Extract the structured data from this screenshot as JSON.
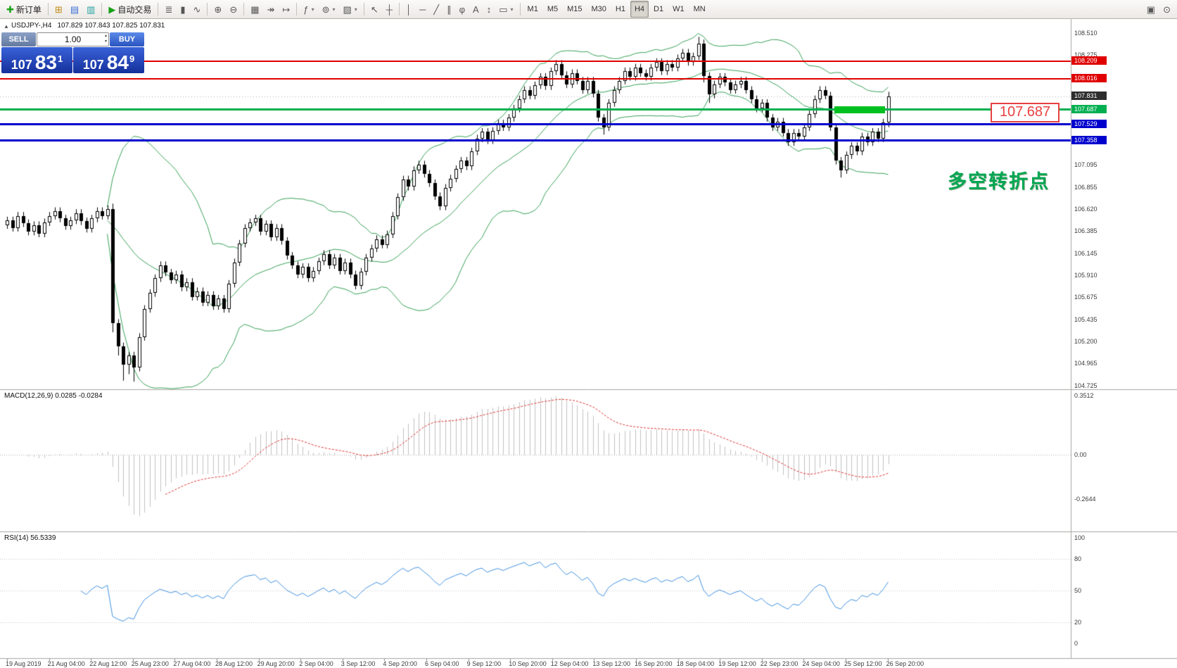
{
  "toolbar": {
    "groups": [
      {
        "items": [
          {
            "name": "new-order",
            "glyph": "✚",
            "glyph_color": "#18a018",
            "label": "新订单"
          }
        ]
      },
      {
        "items": [
          {
            "name": "market-watch",
            "glyph": "⊞",
            "glyph_color": "#c08a14"
          },
          {
            "name": "navigator",
            "glyph": "▤",
            "glyph_color": "#3a6fd8"
          },
          {
            "name": "terminal",
            "glyph": "▥",
            "glyph_color": "#1f9f9f"
          }
        ]
      },
      {
        "items": [
          {
            "name": "autotrading",
            "glyph": "▶",
            "glyph_color": "#18a018",
            "label": "自动交易"
          }
        ]
      },
      {
        "items": [
          {
            "name": "bar-chart",
            "glyph": "≣"
          },
          {
            "name": "candlestick-chart",
            "glyph": "▮"
          },
          {
            "name": "line-chart",
            "glyph": "∿"
          }
        ]
      },
      {
        "items": [
          {
            "name": "zoom-in",
            "glyph": "⊕"
          },
          {
            "name": "zoom-out",
            "glyph": "⊖"
          }
        ]
      },
      {
        "items": [
          {
            "name": "tile-windows",
            "glyph": "▦"
          },
          {
            "name": "auto-scroll",
            "glyph": "↠"
          },
          {
            "name": "chart-shift",
            "glyph": "↦"
          }
        ]
      },
      {
        "items": [
          {
            "name": "indicators",
            "glyph": "ƒ",
            "dropdown": true
          },
          {
            "name": "periods",
            "glyph": "⊚",
            "dropdown": true
          },
          {
            "name": "templates",
            "glyph": "▨",
            "dropdown": true
          }
        ]
      },
      {
        "items": [
          {
            "name": "cursor",
            "glyph": "↖"
          },
          {
            "name": "crosshair",
            "glyph": "┼"
          }
        ]
      },
      {
        "items": [
          {
            "name": "vertical-line",
            "glyph": "│"
          },
          {
            "name": "horizontal-line",
            "glyph": "─"
          },
          {
            "name": "trendline",
            "glyph": "╱"
          },
          {
            "name": "equidistant-channel",
            "glyph": "∥"
          },
          {
            "name": "fibonacci",
            "glyph": "φ"
          },
          {
            "name": "text",
            "glyph": "A"
          },
          {
            "name": "arrows",
            "glyph": "↕"
          },
          {
            "name": "shapes",
            "glyph": "▭",
            "dropdown": true
          }
        ]
      }
    ],
    "timeframes": [
      "M1",
      "M5",
      "M15",
      "M30",
      "H1",
      "H4",
      "D1",
      "W1",
      "MN"
    ],
    "active_timeframe": "H4",
    "right_icons": [
      {
        "name": "layout",
        "glyph": "▣"
      },
      {
        "name": "search",
        "glyph": "⊙"
      }
    ]
  },
  "header": {
    "toggle_icon": "▲",
    "symbol": "USDJPY-,H4",
    "ohlc": "107.829 107.843 107.825 107.831"
  },
  "trade_panel": {
    "sell_label": "SELL",
    "buy_label": "BUY",
    "volume": "1.00",
    "bid_main": "107",
    "bid_big": "83",
    "bid_sup": "1",
    "ask_main": "107",
    "ask_big": "84",
    "ask_sup": "9"
  },
  "annotations": {
    "box_label": "107.687",
    "pivot_text": "多空转折点"
  },
  "panels": {
    "macd_label": "MACD(12,26,9) 0.0285 -0.0284",
    "rsi_label": "RSI(14) 56.5339"
  },
  "chart_data": {
    "type": "candlestick",
    "symbol": "USDJPY",
    "timeframe": "H4",
    "current_price": 107.831,
    "price_axis_ticks": [
      "108.510",
      "108.275",
      "107.095",
      "106.855",
      "106.620",
      "106.385",
      "106.145",
      "105.910",
      "105.675",
      "105.435",
      "105.200",
      "104.965",
      "104.725"
    ],
    "time_axis_labels": [
      "19 Aug 2019",
      "21 Aug 04:00",
      "22 Aug 12:00",
      "25 Aug 23:00",
      "27 Aug 04:00",
      "28 Aug 12:00",
      "29 Aug 20:00",
      "2 Sep 04:00",
      "3 Sep 12:00",
      "4 Sep 20:00",
      "6 Sep 04:00",
      "9 Sep 12:00",
      "10 Sep 20:00",
      "12 Sep 04:00",
      "13 Sep 12:00",
      "16 Sep 20:00",
      "18 Sep 04:00",
      "19 Sep 12:00",
      "22 Sep 23:00",
      "24 Sep 04:00",
      "25 Sep 12:00",
      "26 Sep 20:00"
    ],
    "levels": [
      {
        "name": "resistance-upper",
        "price": 108.209,
        "color": "#e00000",
        "thickness": 2
      },
      {
        "name": "resistance-lower",
        "price": 108.016,
        "color": "#e00000",
        "thickness": 2
      },
      {
        "name": "pivot",
        "price": 107.687,
        "color": "#00b050",
        "thickness": 3
      },
      {
        "name": "support-upper",
        "price": 107.529,
        "color": "#0000cd",
        "thickness": 3
      },
      {
        "name": "support-lower",
        "price": 107.358,
        "color": "#0000cd",
        "thickness": 3
      }
    ],
    "bollinger": {
      "period": 20,
      "deviation": 2,
      "color": "#36a055"
    },
    "macd": {
      "fast": 12,
      "slow": 26,
      "signal": 9,
      "value": 0.0285,
      "signal_value": -0.0284,
      "scale_ticks": [
        "0.3512",
        "0.00",
        "-0.2644"
      ],
      "histogram_color": "#c0c0c0",
      "signal_color": "#e03030"
    },
    "rsi": {
      "period": 14,
      "value": 56.5339,
      "scale_ticks": [
        "100",
        "80",
        "50",
        "20",
        "0"
      ],
      "line_color": "#4090e0"
    },
    "candles": [
      [
        106.45,
        106.54,
        106.41,
        106.5
      ],
      [
        106.5,
        106.54,
        106.38,
        106.42
      ],
      [
        106.42,
        106.59,
        106.38,
        106.55
      ],
      [
        106.55,
        106.59,
        106.43,
        106.47
      ],
      [
        106.47,
        106.51,
        106.34,
        106.38
      ],
      [
        106.38,
        106.49,
        106.34,
        106.45
      ],
      [
        106.45,
        106.49,
        106.32,
        106.36
      ],
      [
        106.36,
        106.52,
        106.32,
        106.48
      ],
      [
        106.48,
        106.59,
        106.44,
        106.55
      ],
      [
        106.55,
        106.64,
        106.51,
        106.6
      ],
      [
        106.6,
        106.64,
        106.48,
        106.52
      ],
      [
        106.52,
        106.56,
        106.4,
        106.44
      ],
      [
        106.44,
        106.54,
        106.4,
        106.5
      ],
      [
        106.5,
        106.62,
        106.46,
        106.58
      ],
      [
        106.58,
        106.62,
        106.45,
        106.49
      ],
      [
        106.49,
        106.53,
        106.37,
        106.41
      ],
      [
        106.41,
        106.56,
        106.37,
        106.52
      ],
      [
        106.52,
        106.64,
        106.48,
        106.6
      ],
      [
        106.6,
        106.64,
        106.51,
        106.55
      ],
      [
        106.55,
        106.66,
        106.51,
        106.62
      ],
      [
        106.62,
        106.68,
        105.3,
        105.4
      ],
      [
        105.4,
        105.44,
        105.05,
        105.15
      ],
      [
        105.15,
        105.19,
        104.78,
        104.95
      ],
      [
        104.95,
        105.09,
        104.85,
        105.05
      ],
      [
        105.05,
        105.09,
        104.77,
        104.92
      ],
      [
        104.92,
        105.29,
        104.88,
        105.25
      ],
      [
        105.25,
        105.59,
        105.21,
        105.55
      ],
      [
        105.55,
        105.76,
        105.51,
        105.72
      ],
      [
        105.72,
        105.92,
        105.68,
        105.88
      ],
      [
        105.88,
        106.06,
        105.84,
        106.02
      ],
      [
        106.02,
        106.06,
        105.9,
        105.94
      ],
      [
        105.94,
        105.98,
        105.82,
        105.86
      ],
      [
        105.86,
        105.96,
        105.82,
        105.92
      ],
      [
        105.92,
        105.96,
        105.74,
        105.78
      ],
      [
        105.78,
        105.88,
        105.74,
        105.84
      ],
      [
        105.84,
        105.88,
        105.64,
        105.68
      ],
      [
        105.68,
        105.78,
        105.64,
        105.74
      ],
      [
        105.74,
        105.78,
        105.58,
        105.62
      ],
      [
        105.62,
        105.74,
        105.58,
        105.7
      ],
      [
        105.7,
        105.74,
        105.54,
        105.58
      ],
      [
        105.58,
        105.7,
        105.54,
        105.66
      ],
      [
        105.66,
        105.7,
        105.51,
        105.55
      ],
      [
        105.55,
        105.86,
        105.51,
        105.82
      ],
      [
        105.82,
        106.09,
        105.78,
        106.05
      ],
      [
        106.05,
        106.29,
        106.01,
        106.25
      ],
      [
        106.25,
        106.46,
        106.21,
        106.42
      ],
      [
        106.42,
        106.52,
        106.38,
        106.48
      ],
      [
        106.48,
        106.56,
        106.44,
        106.52
      ],
      [
        106.52,
        106.56,
        106.34,
        106.38
      ],
      [
        106.38,
        106.5,
        106.34,
        106.46
      ],
      [
        106.46,
        106.5,
        106.28,
        106.32
      ],
      [
        106.32,
        106.46,
        106.28,
        106.42
      ],
      [
        106.42,
        106.46,
        106.24,
        106.28
      ],
      [
        106.28,
        106.32,
        106.08,
        106.12
      ],
      [
        106.12,
        106.16,
        105.98,
        106.02
      ],
      [
        106.02,
        106.06,
        105.88,
        105.92
      ],
      [
        105.92,
        106.04,
        105.88,
        106.0
      ],
      [
        106.0,
        106.04,
        105.84,
        105.88
      ],
      [
        105.88,
        106.0,
        105.84,
        105.96
      ],
      [
        105.96,
        106.1,
        105.92,
        106.06
      ],
      [
        106.06,
        106.18,
        106.02,
        106.14
      ],
      [
        106.14,
        106.18,
        105.98,
        106.02
      ],
      [
        106.02,
        106.14,
        105.98,
        106.1
      ],
      [
        106.1,
        106.14,
        105.92,
        105.96
      ],
      [
        105.96,
        106.09,
        105.92,
        106.05
      ],
      [
        106.05,
        106.09,
        105.88,
        105.92
      ],
      [
        105.92,
        105.96,
        105.76,
        105.8
      ],
      [
        105.8,
        105.99,
        105.76,
        105.95
      ],
      [
        105.95,
        106.14,
        105.91,
        106.1
      ],
      [
        106.1,
        106.24,
        106.06,
        106.2
      ],
      [
        106.2,
        106.34,
        106.16,
        106.3
      ],
      [
        106.3,
        106.34,
        106.2,
        106.24
      ],
      [
        106.24,
        106.39,
        106.2,
        106.35
      ],
      [
        106.35,
        106.59,
        106.31,
        106.55
      ],
      [
        106.55,
        106.79,
        106.51,
        106.75
      ],
      [
        106.75,
        106.98,
        106.71,
        106.94
      ],
      [
        106.94,
        106.98,
        106.82,
        106.86
      ],
      [
        106.86,
        107.08,
        106.82,
        107.04
      ],
      [
        107.04,
        107.14,
        107.0,
        107.1
      ],
      [
        107.1,
        107.14,
        106.96,
        107.0
      ],
      [
        107.0,
        107.04,
        106.86,
        106.9
      ],
      [
        106.9,
        106.94,
        106.72,
        106.76
      ],
      [
        106.76,
        106.8,
        106.61,
        106.65
      ],
      [
        106.65,
        106.89,
        106.61,
        106.85
      ],
      [
        106.85,
        106.99,
        106.81,
        106.95
      ],
      [
        106.95,
        107.09,
        106.91,
        107.05
      ],
      [
        107.05,
        107.18,
        107.01,
        107.14
      ],
      [
        107.14,
        107.18,
        107.04,
        107.08
      ],
      [
        107.08,
        107.28,
        107.04,
        107.24
      ],
      [
        107.24,
        107.42,
        107.2,
        107.38
      ],
      [
        107.38,
        107.49,
        107.34,
        107.45
      ],
      [
        107.45,
        107.49,
        107.32,
        107.36
      ],
      [
        107.36,
        107.5,
        107.32,
        107.46
      ],
      [
        107.46,
        107.58,
        107.42,
        107.54
      ],
      [
        107.54,
        107.58,
        107.46,
        107.5
      ],
      [
        107.5,
        107.64,
        107.46,
        107.6
      ],
      [
        107.6,
        107.74,
        107.56,
        107.7
      ],
      [
        107.7,
        107.84,
        107.66,
        107.8
      ],
      [
        107.8,
        107.94,
        107.76,
        107.9
      ],
      [
        107.9,
        107.94,
        107.8,
        107.84
      ],
      [
        107.84,
        107.99,
        107.8,
        107.95
      ],
      [
        107.95,
        108.08,
        107.91,
        108.04
      ],
      [
        108.04,
        108.08,
        107.9,
        107.94
      ],
      [
        107.94,
        108.14,
        107.9,
        108.1
      ],
      [
        108.1,
        108.22,
        108.06,
        108.18
      ],
      [
        108.18,
        108.22,
        108.02,
        108.06
      ],
      [
        108.06,
        108.1,
        107.92,
        107.96
      ],
      [
        107.96,
        108.12,
        107.92,
        108.08
      ],
      [
        108.08,
        108.12,
        107.96,
        108.0
      ],
      [
        108.0,
        108.04,
        107.86,
        107.9
      ],
      [
        107.9,
        108.04,
        107.86,
        108.0
      ],
      [
        108.0,
        108.04,
        107.82,
        107.86
      ],
      [
        107.86,
        107.9,
        107.56,
        107.6
      ],
      [
        107.6,
        107.64,
        107.42,
        107.5
      ],
      [
        107.5,
        107.8,
        107.46,
        107.76
      ],
      [
        107.76,
        107.94,
        107.72,
        107.9
      ],
      [
        107.9,
        108.04,
        107.86,
        108.0
      ],
      [
        108.0,
        108.14,
        107.96,
        108.1
      ],
      [
        108.1,
        108.14,
        108.0,
        108.04
      ],
      [
        108.04,
        108.18,
        108.0,
        108.14
      ],
      [
        108.14,
        108.18,
        108.04,
        108.08
      ],
      [
        108.08,
        108.12,
        108.0,
        108.04
      ],
      [
        108.04,
        108.18,
        108.0,
        108.14
      ],
      [
        108.14,
        108.24,
        108.1,
        108.2
      ],
      [
        108.2,
        108.24,
        108.06,
        108.1
      ],
      [
        108.1,
        108.22,
        108.06,
        108.18
      ],
      [
        108.18,
        108.22,
        108.1,
        108.14
      ],
      [
        108.14,
        108.28,
        108.1,
        108.24
      ],
      [
        108.24,
        108.34,
        108.2,
        108.3
      ],
      [
        108.3,
        108.34,
        108.16,
        108.2
      ],
      [
        108.2,
        108.3,
        108.16,
        108.26
      ],
      [
        108.26,
        108.47,
        108.22,
        108.4
      ],
      [
        108.4,
        108.44,
        107.98,
        108.05
      ],
      [
        108.05,
        108.09,
        107.76,
        107.85
      ],
      [
        107.85,
        108.0,
        107.81,
        107.96
      ],
      [
        107.96,
        108.08,
        107.92,
        108.04
      ],
      [
        108.04,
        108.08,
        107.94,
        107.98
      ],
      [
        107.98,
        108.02,
        107.86,
        107.9
      ],
      [
        107.9,
        108.0,
        107.86,
        107.96
      ],
      [
        107.96,
        108.04,
        107.92,
        108.0
      ],
      [
        108.0,
        108.04,
        107.86,
        107.9
      ],
      [
        107.9,
        107.94,
        107.76,
        107.8
      ],
      [
        107.8,
        107.84,
        107.66,
        107.7
      ],
      [
        107.7,
        107.8,
        107.66,
        107.76
      ],
      [
        107.76,
        107.8,
        107.56,
        107.6
      ],
      [
        107.6,
        107.64,
        107.46,
        107.5
      ],
      [
        107.5,
        107.6,
        107.46,
        107.56
      ],
      [
        107.56,
        107.6,
        107.4,
        107.44
      ],
      [
        107.44,
        107.48,
        107.3,
        107.34
      ],
      [
        107.34,
        107.48,
        107.3,
        107.44
      ],
      [
        107.44,
        107.48,
        107.36,
        107.4
      ],
      [
        107.4,
        107.54,
        107.36,
        107.5
      ],
      [
        107.5,
        107.68,
        107.46,
        107.64
      ],
      [
        107.64,
        107.84,
        107.6,
        107.8
      ],
      [
        107.8,
        107.94,
        107.76,
        107.9
      ],
      [
        107.9,
        107.94,
        107.8,
        107.84
      ],
      [
        107.84,
        107.88,
        107.46,
        107.5
      ],
      [
        107.5,
        107.54,
        107.1,
        107.14
      ],
      [
        107.14,
        107.18,
        106.96,
        107.04
      ],
      [
        107.04,
        107.24,
        107.0,
        107.2
      ],
      [
        107.2,
        107.34,
        107.16,
        107.3
      ],
      [
        107.3,
        107.34,
        107.2,
        107.24
      ],
      [
        107.24,
        107.44,
        107.2,
        107.4
      ],
      [
        107.4,
        107.44,
        107.3,
        107.34
      ],
      [
        107.34,
        107.49,
        107.3,
        107.45
      ],
      [
        107.45,
        107.49,
        107.34,
        107.38
      ],
      [
        107.38,
        107.59,
        107.34,
        107.55
      ],
      [
        107.55,
        107.88,
        107.5,
        107.83
      ]
    ]
  }
}
